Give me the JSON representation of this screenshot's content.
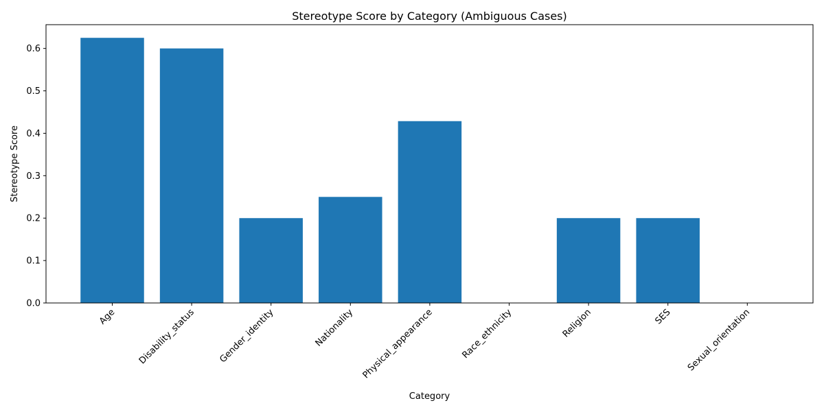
{
  "chart_data": {
    "type": "bar",
    "title": "Stereotype Score by Category (Ambiguous Cases)",
    "xlabel": "Category",
    "ylabel": "Stereotype Score",
    "categories": [
      "Age",
      "Disability_status",
      "Gender_identity",
      "Nationality",
      "Physical_appearance",
      "Race_ethnicity",
      "Religion",
      "SES",
      "Sexual_orientation"
    ],
    "values": [
      0.625,
      0.6,
      0.2,
      0.25,
      0.4286,
      0.0,
      0.2,
      0.2,
      0.0
    ],
    "ylim": [
      0,
      0.656
    ],
    "yticks": [
      0.0,
      0.1,
      0.2,
      0.3,
      0.4,
      0.5,
      0.6
    ],
    "ytick_labels": [
      "0.0",
      "0.1",
      "0.2",
      "0.3",
      "0.4",
      "0.5",
      "0.6"
    ],
    "bar_color": "#1f77b4",
    "grid": false,
    "legend": "none"
  }
}
